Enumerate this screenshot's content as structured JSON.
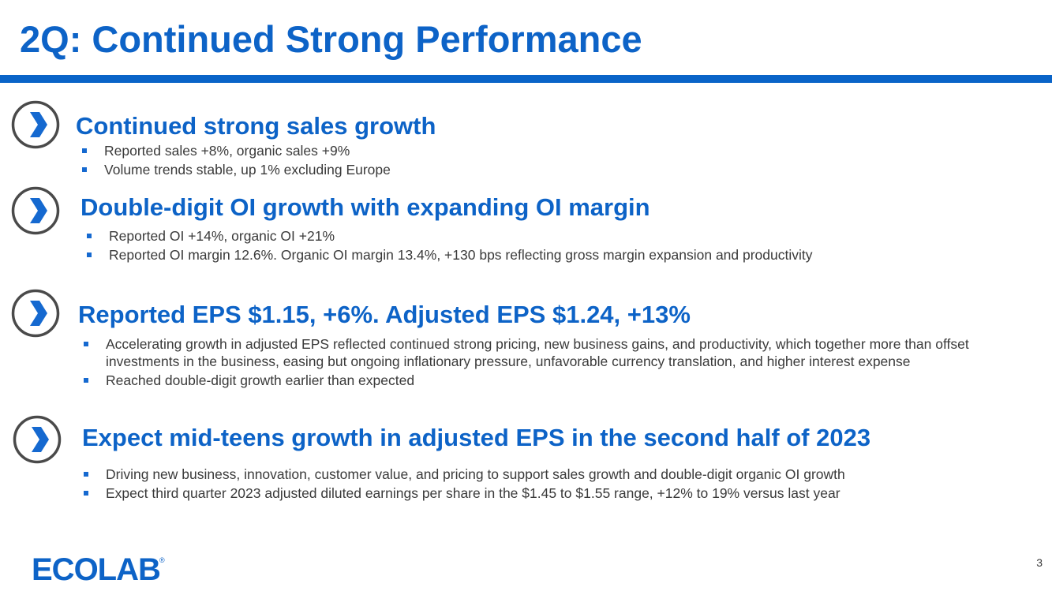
{
  "slide": {
    "title": "2Q: Continued Strong Performance",
    "page_number": "3"
  },
  "sections": [
    {
      "heading": "Continued strong sales growth",
      "bullets": [
        "Reported sales +8%, organic sales +9%",
        "Volume trends stable, up 1% excluding Europe"
      ]
    },
    {
      "heading": "Double-digit OI growth with expanding OI margin",
      "bullets": [
        "Reported OI +14%, organic OI +21%",
        "Reported OI margin 12.6%. Organic OI margin 13.4%, +130 bps reflecting gross margin expansion and productivity"
      ]
    },
    {
      "heading": "Reported EPS $1.15, +6%. Adjusted EPS $1.24, +13%",
      "bullets": [
        "Accelerating growth in adjusted EPS reflected continued strong pricing, new business gains, and productivity, which together more than offset investments in the business, easing but ongoing inflationary pressure, unfavorable currency translation, and higher interest expense",
        "Reached double-digit growth earlier than expected"
      ]
    },
    {
      "heading": "Expect mid-teens growth in adjusted EPS in the second half of 2023",
      "bullets": [
        "Driving new business, innovation, customer value, and pricing to support sales growth and double-digit organic OI growth",
        "Expect third quarter 2023 adjusted diluted earnings per share in the $1.45 to $1.55 range, +12% to 19% versus last year"
      ]
    }
  ],
  "logo": {
    "text": "ECOLAB",
    "mark": "®"
  },
  "colors": {
    "brand_blue": "#0d63c7",
    "rule_blue": "#0a64c8",
    "body_text": "#3a3a3a",
    "chevron_ring": "#4a4a4a"
  }
}
